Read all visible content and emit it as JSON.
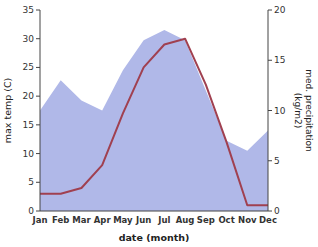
{
  "chart_data": {
    "type": "line",
    "xlabel": "date (month)",
    "ylabel": "max temp (C)",
    "y2label": "med. precipitation\n(kg/m2)",
    "categories": [
      "Jan",
      "Feb",
      "Mar",
      "Apr",
      "May",
      "Jun",
      "Jul",
      "Aug",
      "Sep",
      "Oct",
      "Nov",
      "Dec"
    ],
    "series": [
      {
        "type": "area",
        "axis": "y2",
        "color": "#b0b8e8",
        "values": [
          10,
          13,
          11,
          10,
          14,
          17,
          18,
          17,
          12,
          7,
          6,
          8
        ]
      },
      {
        "type": "line",
        "color": "#a04050",
        "values": [
          3,
          3,
          4,
          8,
          17,
          25,
          29,
          30,
          22,
          12,
          1,
          1
        ]
      }
    ],
    "ylim": [
      0,
      35
    ],
    "yticks": [
      0,
      5,
      10,
      15,
      20,
      25,
      30,
      35
    ],
    "y2lim": [
      0,
      20
    ],
    "y2ticks": [
      0,
      5,
      10,
      15,
      20
    ],
    "grid": false
  }
}
